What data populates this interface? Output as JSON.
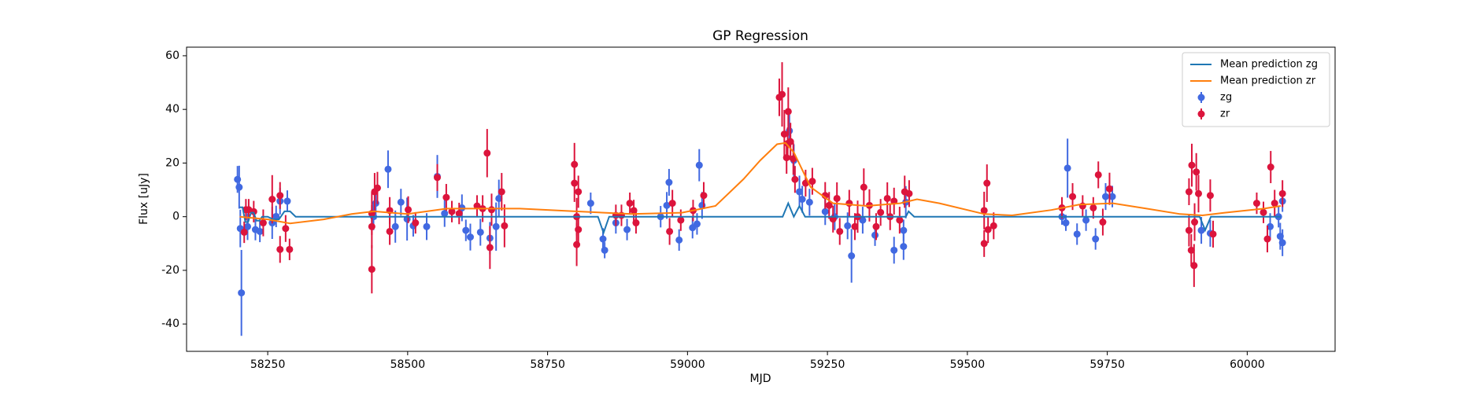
{
  "chart_data": {
    "type": "errorbar",
    "title": "GP Regression",
    "x_label": "MJD",
    "y_label": "Flux [uJy]",
    "xlim": [
      58105,
      60157
    ],
    "ylim": [
      -50.2,
      63.2
    ],
    "xticks": [
      58250,
      58500,
      58750,
      59000,
      59250,
      59500,
      59750,
      60000
    ],
    "yticks": [
      -40,
      -20,
      0,
      20,
      40,
      60
    ],
    "legend": "upper right",
    "series": [
      {
        "name": "Mean prediction zg",
        "type": "line",
        "color": "#1f77b4",
        "x": [
          58200,
          58205,
          58210,
          58215,
          58220,
          58225,
          58230,
          58235,
          58240,
          58250,
          58260,
          58270,
          58280,
          58290,
          58300,
          58310,
          58400,
          58500,
          58600,
          58700,
          58840,
          58850,
          58860,
          58900,
          59000,
          59100,
          59170,
          59180,
          59190,
          59200,
          59210,
          59300,
          59390,
          59395,
          59405,
          59500,
          59660,
          59680,
          59700,
          59760,
          59900,
          59915,
          59925,
          59935,
          59945,
          60000,
          60060
        ],
        "values": [
          3.5,
          3.5,
          -2,
          -2,
          1.5,
          1.5,
          -1.5,
          -1.5,
          0,
          0,
          -1,
          -1,
          2,
          2,
          0,
          0,
          0,
          0,
          0,
          0,
          0,
          -6,
          0,
          0,
          0,
          0,
          0,
          5,
          0,
          4,
          0,
          0,
          0,
          2,
          0,
          0,
          0,
          0,
          0,
          0,
          0,
          0,
          -5,
          0,
          0,
          0,
          0
        ]
      },
      {
        "name": "Mean prediction zr",
        "type": "line",
        "color": "#ff7f0e",
        "x": [
          58200,
          58250,
          58290,
          58350,
          58400,
          58440,
          58500,
          58570,
          58650,
          58700,
          58800,
          58900,
          58990,
          59050,
          59100,
          59130,
          59160,
          59175,
          59190,
          59220,
          59260,
          59320,
          59380,
          59410,
          59450,
          59530,
          59580,
          59650,
          59700,
          59760,
          59820,
          59880,
          59920,
          59960,
          60030,
          60060
        ],
        "values": [
          0,
          -1,
          -2.5,
          -1,
          1,
          2,
          1,
          3,
          3,
          3,
          2,
          1,
          1.5,
          4,
          14,
          21,
          27,
          27.5,
          24,
          11,
          5,
          4,
          5,
          6.5,
          5,
          1,
          0.5,
          2.5,
          4.5,
          5,
          3,
          1,
          0.5,
          1.5,
          3,
          4
        ]
      },
      {
        "name": "zg",
        "type": "points",
        "color": "#4169e1",
        "x": [
          58196,
          58199,
          58201,
          58203,
          58214,
          58228,
          58236,
          58258,
          58265,
          58272,
          58285,
          58439,
          58443,
          58465,
          58478,
          58488,
          58499,
          58510,
          58534,
          58553,
          58566,
          58597,
          58604,
          58612,
          58630,
          58647,
          58658,
          58663,
          58827,
          58849,
          58852,
          58872,
          58892,
          58952,
          58963,
          58967,
          58985,
          59009,
          59017,
          59021,
          59026,
          59182,
          59190,
          59200,
          59205,
          59218,
          59246,
          59263,
          59286,
          59293,
          59313,
          59335,
          59369,
          59386,
          59386,
          59390,
          59669,
          59676,
          59679,
          59696,
          59712,
          59729,
          59747,
          59759,
          59918,
          59934,
          60041,
          60056,
          60059,
          60063,
          60063
        ],
        "values": [
          13.9,
          11,
          -4.4,
          -28.4,
          -3.7,
          -4.8,
          -5.5,
          -2.3,
          0.1,
          5.8,
          5.8,
          0,
          5,
          17.7,
          -3.7,
          5.4,
          -0.9,
          -3.4,
          -3.7,
          15,
          1.2,
          3.3,
          -5.1,
          -7.6,
          -5.8,
          -8,
          -3.7,
          6.8,
          5,
          -8.3,
          -12.5,
          -2.3,
          -4.8,
          0,
          4.2,
          12.8,
          -8.7,
          -4.1,
          -2.7,
          19.2,
          4.2,
          32,
          21,
          9.3,
          6.5,
          5.4,
          1.9,
          0,
          -3.4,
          -14.6,
          -1.3,
          -6.9,
          -12.5,
          -5.1,
          -11.1,
          5.4,
          0,
          -2.3,
          18.1,
          -6.5,
          -1.3,
          -8.3,
          7.5,
          7.5,
          -5.1,
          -6.2,
          -3.7,
          0,
          -7.3,
          -9.7,
          5.8
        ],
        "errors": [
          5,
          8,
          7,
          16,
          5,
          4,
          4,
          6,
          4,
          5,
          4,
          5,
          6,
          7,
          6,
          5,
          8,
          4,
          5,
          8,
          5,
          5,
          4,
          5,
          5,
          6,
          9,
          7,
          4,
          4,
          3,
          4,
          4,
          4,
          5,
          5,
          4,
          4,
          4,
          6,
          5,
          6,
          6,
          6,
          5,
          5,
          5,
          5,
          5,
          10,
          5,
          4,
          5,
          4,
          5,
          6,
          3,
          3,
          11,
          4,
          4,
          4,
          5,
          4,
          5,
          5,
          5,
          4,
          5,
          5,
          4
        ]
      },
      {
        "name": "zr",
        "type": "points",
        "color": "#dc143c",
        "x": [
          58208,
          58211,
          58216,
          58225,
          58242,
          58258,
          58272,
          58272,
          58289,
          58282,
          58436,
          58436,
          58436,
          58441,
          58446,
          58468,
          58468,
          58501,
          58514,
          58553,
          58569,
          58579,
          58592,
          58624,
          58634,
          58642,
          58647,
          58650,
          58668,
          58673,
          58798,
          58798,
          58802,
          58802,
          58805,
          58805,
          58872,
          58882,
          58897,
          58904,
          58908,
          58973,
          58968,
          58988,
          59010,
          59029,
          59164,
          59169,
          59173,
          59177,
          59179,
          59180,
          59184,
          59189,
          59192,
          59211,
          59223,
          59246,
          59253,
          59260,
          59267,
          59272,
          59289,
          59299,
          59304,
          59315,
          59325,
          59337,
          59345,
          59357,
          59362,
          59369,
          59379,
          59388,
          59396,
          59530,
          59530,
          59535,
          59537,
          59547,
          59669,
          59688,
          59706,
          59725,
          59734,
          59742,
          59754,
          59896,
          59896,
          59900,
          59901,
          59905,
          59906,
          59909,
          59913,
          59934,
          59939,
          60017,
          60029,
          60036,
          60042,
          60049,
          60063
        ],
        "values": [
          -5.8,
          2.6,
          2.6,
          1.9,
          -2.3,
          6.5,
          7.9,
          -12.2,
          -12.2,
          -4.4,
          1.2,
          -19.6,
          -3.7,
          9.3,
          10.7,
          2.3,
          -5.5,
          2.6,
          -2.3,
          14.6,
          7.2,
          1.9,
          1.2,
          4,
          3,
          23.7,
          -11.5,
          2.6,
          9.3,
          -3.4,
          19.5,
          12.5,
          -10.4,
          0,
          9.3,
          -4.8,
          0.5,
          0.5,
          5,
          2.3,
          -2.3,
          5,
          -5.5,
          -1.3,
          2.3,
          7.9,
          44.5,
          45.6,
          30.8,
          22,
          27.3,
          39.2,
          28,
          21.6,
          13.9,
          12.5,
          13.2,
          7.9,
          4.2,
          -0.9,
          6.8,
          -5.5,
          5,
          -3.7,
          0,
          11,
          4.2,
          -3.7,
          1.6,
          6.8,
          0,
          5.8,
          -1.3,
          9.3,
          8.6,
          2.3,
          -10,
          12.5,
          -4.8,
          -3.4,
          3.3,
          7.5,
          4,
          3.3,
          15.6,
          -2,
          10.4,
          9.3,
          -5.1,
          -12.5,
          19.2,
          -18.2,
          -2,
          16.7,
          8.6,
          7.9,
          -6.5,
          5,
          1.6,
          -8.3,
          18.5,
          5,
          8.6
        ],
        "errors": [
          4,
          4,
          4,
          4,
          5,
          9,
          5,
          5,
          4,
          5,
          8,
          9,
          8,
          7,
          6,
          5,
          5,
          5,
          4,
          5,
          5,
          4,
          4,
          4,
          5,
          9,
          8,
          6,
          7,
          8,
          8,
          7,
          8,
          7,
          6,
          6,
          4,
          4,
          4,
          4,
          4,
          5,
          5,
          4,
          4,
          5,
          7,
          12,
          9,
          6,
          6,
          9,
          7,
          6,
          5,
          5,
          5,
          5,
          5,
          5,
          6,
          5,
          5,
          5,
          6,
          7,
          6,
          5,
          5,
          6,
          5,
          5,
          5,
          6,
          5,
          7,
          5,
          7,
          5,
          5,
          4,
          5,
          4,
          4,
          5,
          5,
          6,
          5,
          6,
          6,
          8,
          8,
          7,
          7,
          7,
          6,
          5,
          4,
          4,
          5,
          6,
          5,
          5
        ]
      }
    ]
  }
}
